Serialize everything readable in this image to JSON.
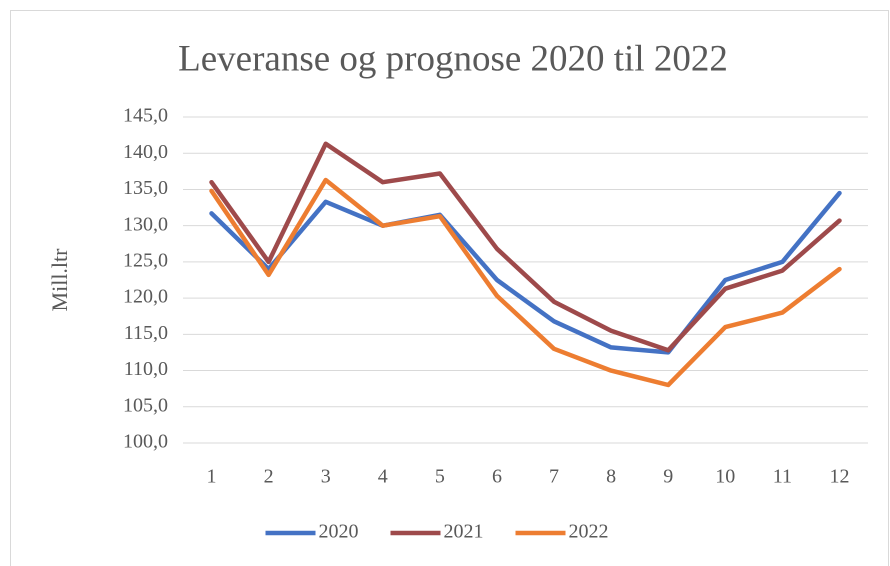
{
  "chart_data": {
    "type": "line",
    "title": "Leveranse og prognose 2020 til 2022",
    "y_label": "Mill.ltr",
    "categories": [
      "1",
      "2",
      "3",
      "4",
      "5",
      "6",
      "7",
      "8",
      "9",
      "10",
      "11",
      "12"
    ],
    "series": [
      {
        "name": "2020",
        "color": "#4472c4",
        "values": [
          131.7,
          124.0,
          133.3,
          130.0,
          131.5,
          122.5,
          116.8,
          113.2,
          112.5,
          122.5,
          125.0,
          134.5
        ]
      },
      {
        "name": "2021",
        "color": "#9e4a4b",
        "values": [
          136.0,
          125.0,
          141.3,
          136.0,
          137.2,
          126.8,
          119.5,
          115.5,
          112.8,
          121.3,
          123.8,
          130.7
        ]
      },
      {
        "name": "2022",
        "color": "#ed7d31",
        "values": [
          134.8,
          123.2,
          136.3,
          130.0,
          131.3,
          120.3,
          113.0,
          110.0,
          108.0,
          116.0,
          118.0,
          124.0
        ]
      }
    ],
    "ylim": [
      100,
      145
    ],
    "yticks": [
      {
        "value": 100,
        "label": "100,0"
      },
      {
        "value": 105,
        "label": "105,0"
      },
      {
        "value": 110,
        "label": "110,0"
      },
      {
        "value": 115,
        "label": "115,0"
      },
      {
        "value": 120,
        "label": "120,0"
      },
      {
        "value": 125,
        "label": "125,0"
      },
      {
        "value": 130,
        "label": "130,0"
      },
      {
        "value": 135,
        "label": "135,0"
      },
      {
        "value": 140,
        "label": "140,0"
      },
      {
        "value": 145,
        "label": "145,0"
      }
    ],
    "grid": true,
    "legend": "bottom"
  }
}
